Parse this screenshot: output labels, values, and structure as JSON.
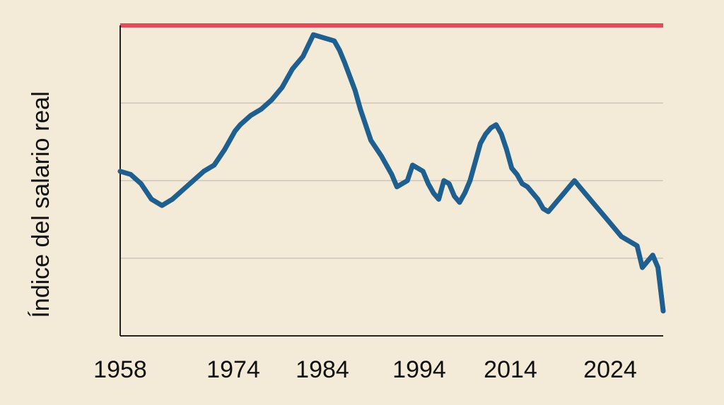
{
  "chart_data": {
    "type": "line",
    "title": "",
    "xlabel": "",
    "ylabel": "Índice del salario real",
    "x_tick_labels": [
      "1958",
      "1974",
      "1984",
      "1994",
      "2014",
      "2024"
    ],
    "grid": true,
    "colors": {
      "background": "#f3ead8",
      "series": "#1f5f8f",
      "reference_line": "#e8485a",
      "grid": "#b9b2a8",
      "axis": "#222222"
    },
    "reference_line": {
      "value": 100
    },
    "ylim": [
      0,
      100
    ],
    "x": [
      0,
      2,
      4,
      6,
      8,
      10,
      12,
      14,
      16,
      18,
      20,
      22,
      23,
      25,
      27,
      29,
      31,
      33,
      35,
      37,
      39,
      41,
      42,
      43,
      45,
      46,
      48,
      50,
      52,
      53,
      55,
      56,
      58,
      59,
      60,
      61,
      62,
      63,
      64,
      65,
      66,
      67,
      68,
      69,
      70,
      71,
      72,
      73,
      74,
      75,
      76,
      77,
      78,
      79,
      80,
      81,
      82,
      83,
      84,
      85,
      86,
      87,
      88,
      89,
      90,
      91,
      92,
      93,
      94,
      95,
      96,
      97,
      98,
      99,
      100,
      101,
      102,
      103,
      104
    ],
    "series": [
      {
        "values": [
          53,
          52,
          49,
          44,
          42,
          44,
          47,
          50,
          53,
          55,
          60,
          66,
          68,
          71,
          73,
          76,
          80,
          86,
          90,
          97,
          96,
          95,
          92,
          88,
          79,
          73,
          63,
          58,
          52,
          48,
          50,
          55,
          53,
          49,
          46,
          44,
          50,
          49,
          45,
          43,
          46,
          50,
          56,
          62,
          65,
          67,
          68,
          65,
          60,
          54,
          52,
          49,
          48,
          46,
          44,
          41,
          40,
          42,
          44,
          46,
          48,
          50,
          48,
          46,
          44,
          42,
          40,
          38,
          36,
          34,
          32,
          31,
          30,
          29,
          22,
          24,
          26,
          22,
          8
        ],
        "note": ""
      }
    ]
  }
}
